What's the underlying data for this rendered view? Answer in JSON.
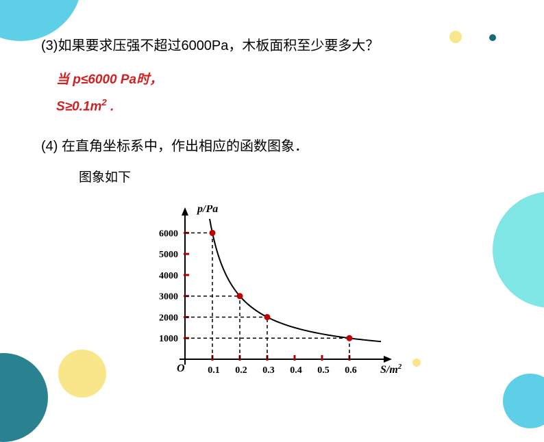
{
  "question3": "(3)如果要求压强不超过6000Pa，木板面积至少要多大？",
  "answer3_line1": "当 p≤6000 Pa时，",
  "answer3_line2_prefix": "S",
  "answer3_line2_rest": "≥0.1m",
  "answer3_line2_sup": "2",
  "answer3_line2_period": " .",
  "question4": "(4) 在直角坐标系中，作出相应的函数图象．",
  "answer4": "图象如下",
  "chart": {
    "y_label": "p/Pa",
    "x_label": "S/m",
    "x_label_sup": "2",
    "origin_label": "O",
    "y_ticks": [
      "1000",
      "2000",
      "3000",
      "4000",
      "5000",
      "6000"
    ],
    "y_tick_values": [
      1000,
      2000,
      3000,
      4000,
      5000,
      6000
    ],
    "x_ticks": [
      "0.1",
      "0.2",
      "0.3",
      "0.4",
      "0.5",
      "0.6"
    ],
    "x_tick_values": [
      0.1,
      0.2,
      0.3,
      0.4,
      0.5,
      0.6
    ],
    "points": [
      {
        "x": 0.1,
        "y": 6000
      },
      {
        "x": 0.2,
        "y": 3000
      },
      {
        "x": 0.3,
        "y": 2000
      },
      {
        "x": 0.6,
        "y": 1000
      }
    ],
    "colors": {
      "axis": "#000000",
      "curve": "#000000",
      "point": "#c00000",
      "tick_mark": "#c00000",
      "dashed": "#000000",
      "text": "#000000"
    },
    "font": {
      "axis_label_size": 16,
      "tick_size": 14
    }
  }
}
